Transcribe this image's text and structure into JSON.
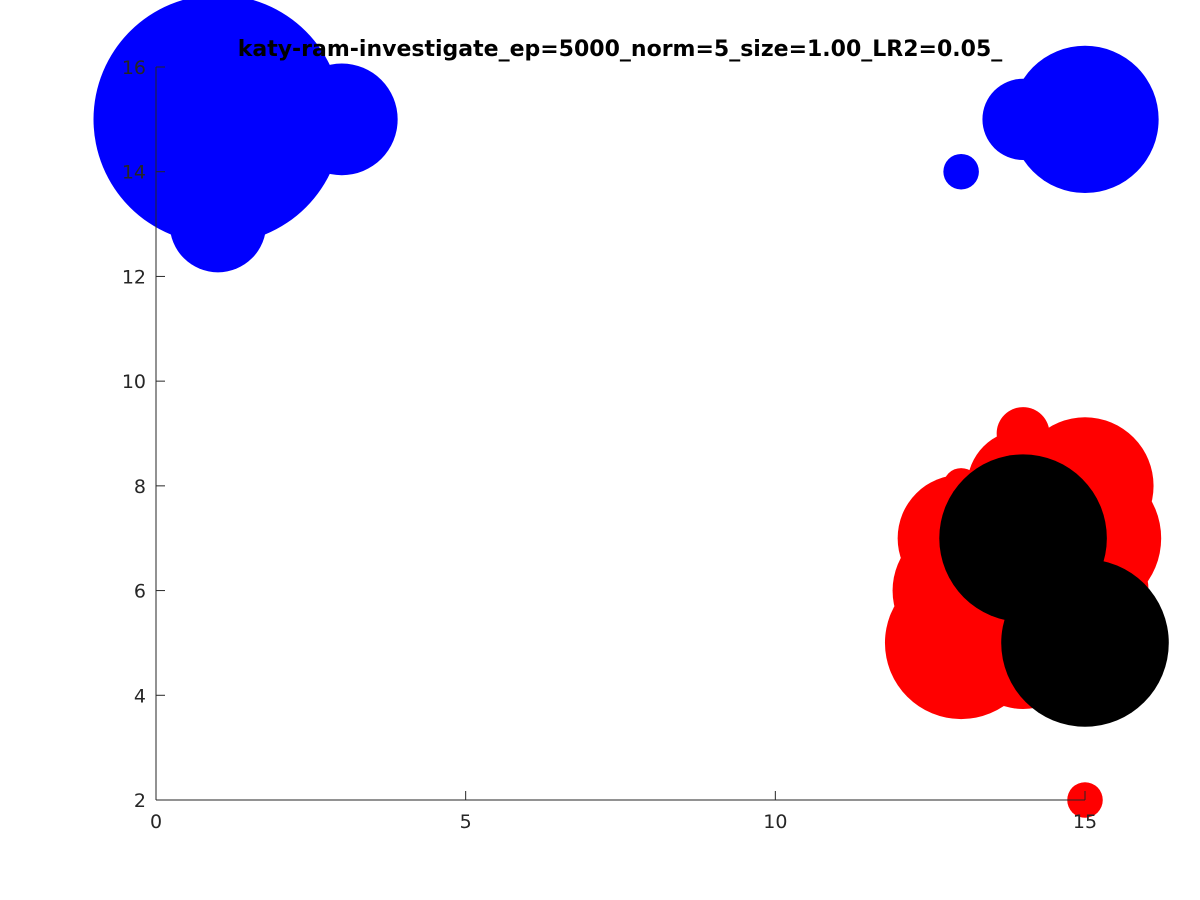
{
  "chart_data": {
    "type": "scatter",
    "title": "katy-ram-investigate_ep=5000_norm=5_size=1.00_LR2=0.05_",
    "xlabel": "",
    "ylabel": "",
    "xlim": [
      0,
      15
    ],
    "ylim": [
      2,
      16
    ],
    "x_ticks": [
      0,
      5,
      10,
      15
    ],
    "y_ticks": [
      2,
      4,
      6,
      8,
      10,
      12,
      14,
      16
    ],
    "marker_size_unit": "relative",
    "grid": false,
    "legend": false,
    "series": [
      {
        "color": "#0000ff",
        "points": [
          {
            "x": 1,
            "y": 15,
            "size": 2.45
          },
          {
            "x": 1,
            "y": 14,
            "size": 1.4
          },
          {
            "x": 1,
            "y": 13,
            "size": 0.95
          },
          {
            "x": 2,
            "y": 15,
            "size": 0.5
          },
          {
            "x": 2,
            "y": 14,
            "size": 0.55
          },
          {
            "x": 3,
            "y": 15,
            "size": 1.1
          },
          {
            "x": 13,
            "y": 14,
            "size": 0.35
          },
          {
            "x": 14,
            "y": 15,
            "size": 0.8
          },
          {
            "x": 15,
            "y": 15,
            "size": 1.45
          }
        ]
      },
      {
        "color": "#ff0000",
        "points": [
          {
            "x": 14,
            "y": 9,
            "size": 0.52
          },
          {
            "x": 13,
            "y": 8,
            "size": 0.35
          },
          {
            "x": 14,
            "y": 8,
            "size": 1.1
          },
          {
            "x": 15,
            "y": 8,
            "size": 1.35
          },
          {
            "x": 13,
            "y": 7,
            "size": 1.25
          },
          {
            "x": 15,
            "y": 7,
            "size": 1.5
          },
          {
            "x": 13,
            "y": 6,
            "size": 1.35
          },
          {
            "x": 14,
            "y": 6,
            "size": 1.6
          },
          {
            "x": 15,
            "y": 6,
            "size": 1.25
          },
          {
            "x": 13,
            "y": 5,
            "size": 1.5
          },
          {
            "x": 14,
            "y": 5,
            "size": 1.3
          },
          {
            "x": 15,
            "y": 2,
            "size": 0.35
          }
        ]
      },
      {
        "color": "#000000",
        "points": [
          {
            "x": 14,
            "y": 7,
            "size": 1.65
          },
          {
            "x": 15,
            "y": 5,
            "size": 1.65
          }
        ]
      }
    ]
  }
}
